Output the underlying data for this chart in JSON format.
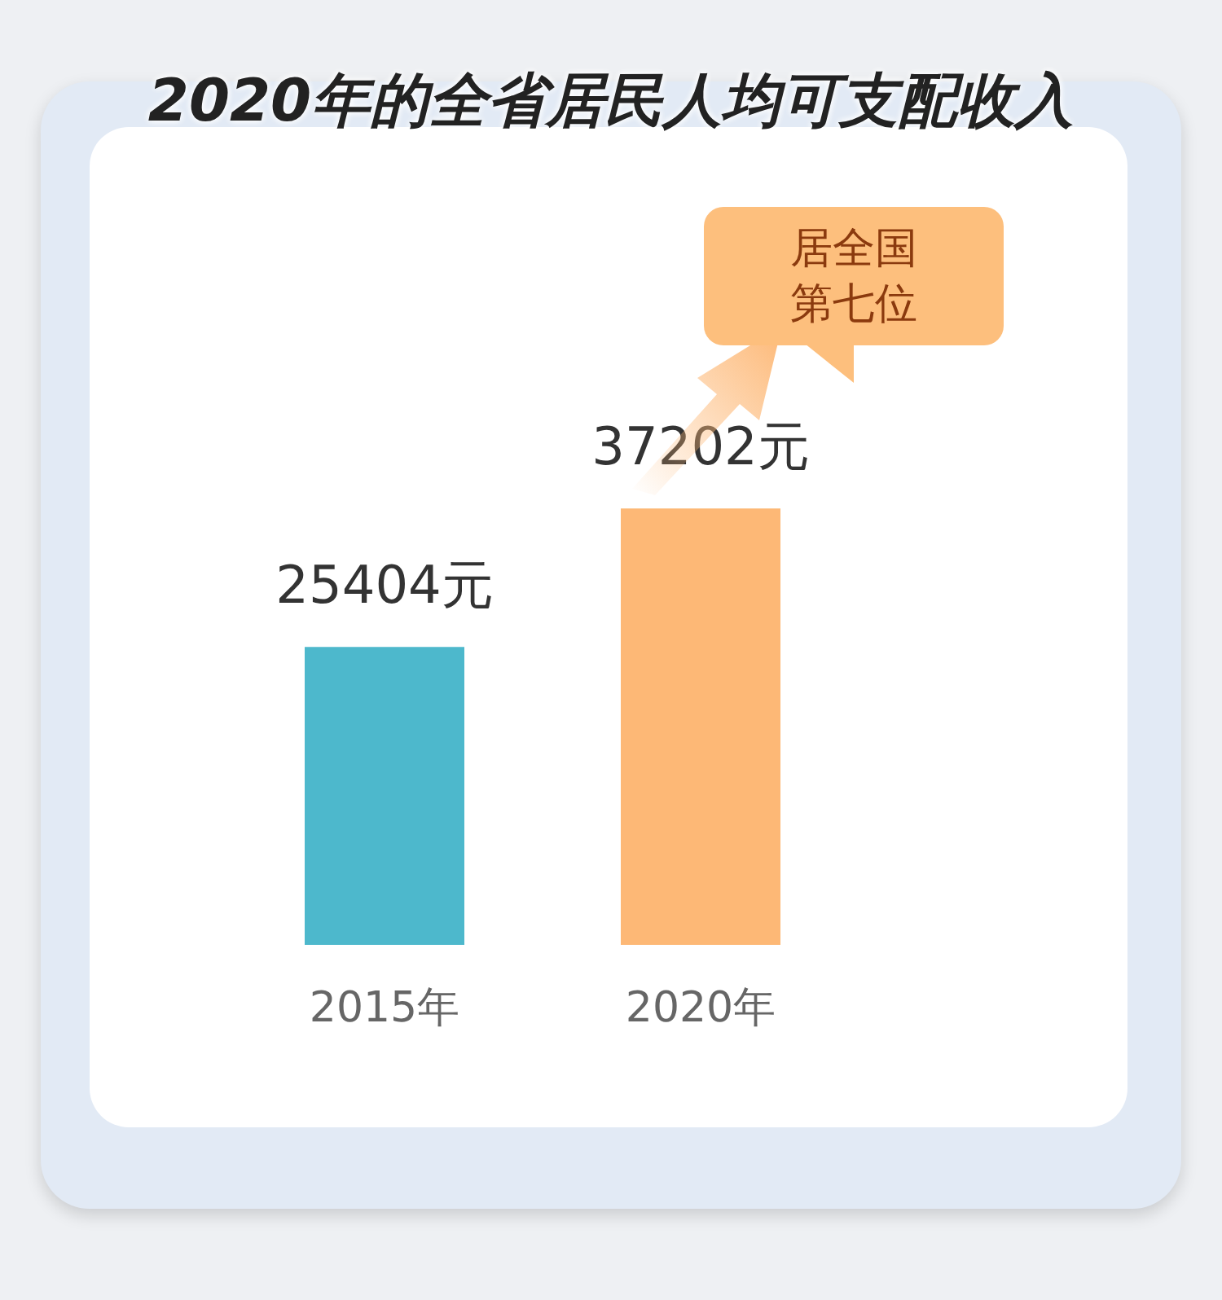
{
  "chart_data": {
    "type": "bar",
    "title": "2020年的全省居民人均可支配收入",
    "categories": [
      "2015年",
      "2020年"
    ],
    "values": [
      25404,
      37202
    ],
    "colors": [
      "#4db8cc",
      "#fdb876"
    ],
    "value_labels": [
      "25404元",
      "37202元"
    ],
    "annotations": [
      "居全国第七位"
    ]
  }
}
